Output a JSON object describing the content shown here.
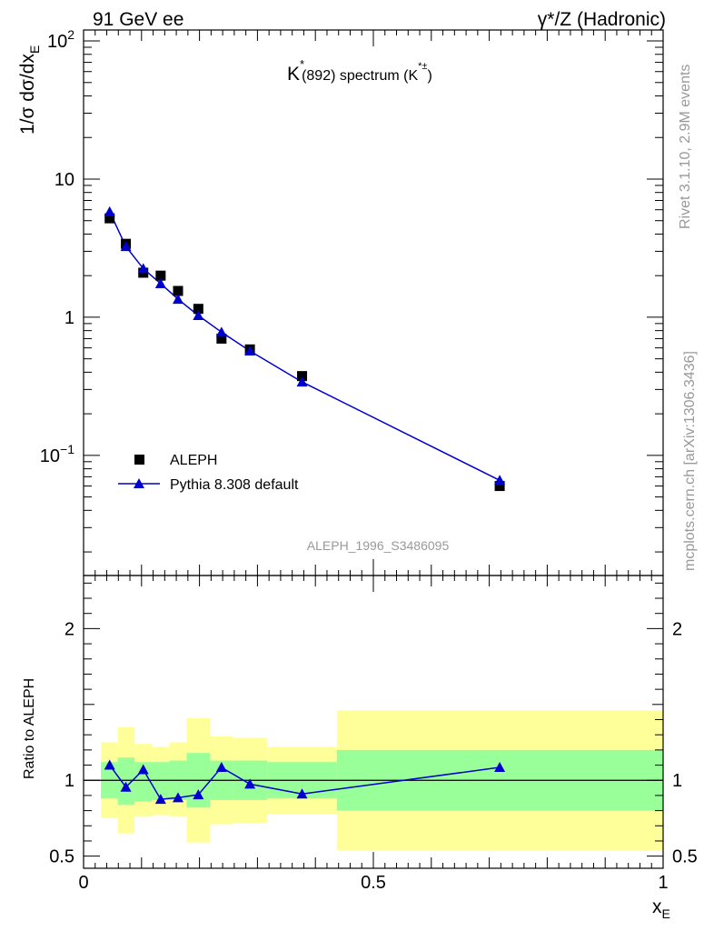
{
  "header": {
    "left": "91 GeV ee",
    "right_prefix": "γ*/Z",
    "right_suffix": "(Hadronic)"
  },
  "side_labels": {
    "rivet": "Rivet 3.1.10,  2.9M events",
    "mcplots": "mcplots.cern.ch [arXiv:1306.3436]"
  },
  "chart_data": [
    {
      "type": "scatter",
      "title": "K*(892) spectrum (K*±)",
      "title_main": "K",
      "title_star": "*",
      "title_rest": "(892) spectrum (K",
      "title_sup": "*±",
      "title_close": ")",
      "ylabel": "1/σ dσ/dx_E",
      "ylabel_main": "1/σ dσ/dx",
      "ylabel_sub": "E",
      "yscale": "log",
      "ylim": [
        0.0135,
        120
      ],
      "xlim": [
        0,
        1
      ],
      "y_ticks": [
        {
          "value": 100,
          "base": "10",
          "exp": "2"
        },
        {
          "value": 10,
          "text": "10"
        },
        {
          "value": 1,
          "text": "1"
        },
        {
          "value": 0.1,
          "base": "10",
          "exp": "−1"
        }
      ],
      "watermark": "ALEPH_1996_S3486095",
      "legend_position": "bottom-left",
      "series": [
        {
          "name": "ALEPH",
          "marker": "square",
          "color": "#000000",
          "x": [
            0.045,
            0.073,
            0.103,
            0.133,
            0.163,
            0.198,
            0.238,
            0.287,
            0.377,
            0.718
          ],
          "y": [
            5.2,
            3.4,
            2.1,
            2.0,
            1.55,
            1.15,
            0.7,
            0.585,
            0.375,
            0.06
          ]
        },
        {
          "name": "Pythia 8.308 default",
          "marker": "triangle",
          "line": true,
          "color": "#0000cc",
          "x": [
            0.045,
            0.073,
            0.103,
            0.133,
            0.163,
            0.198,
            0.238,
            0.287,
            0.377,
            0.718
          ],
          "y": [
            5.8,
            3.25,
            2.25,
            1.75,
            1.35,
            1.03,
            0.78,
            0.57,
            0.34,
            0.066
          ]
        }
      ]
    },
    {
      "type": "line",
      "ylabel": "Ratio to ALEPH",
      "xlabel": "x_E",
      "xlabel_main": "x",
      "xlabel_sub": "E",
      "ylim": [
        0.42,
        2.35
      ],
      "xlim": [
        0,
        1
      ],
      "x_ticks": [
        "0",
        "0.5",
        "1"
      ],
      "y_ticks": [
        "0.5",
        "1",
        "2"
      ],
      "reference_line": 1,
      "band_colors": {
        "inner": "#99ff99",
        "outer": "#ffff99"
      },
      "bands": [
        {
          "x_lo": 0.03,
          "x_hi": 0.059,
          "inner": [
            0.88,
            1.12
          ],
          "outer": [
            0.75,
            1.25
          ]
        },
        {
          "x_lo": 0.059,
          "x_hi": 0.088,
          "inner": [
            0.84,
            1.15
          ],
          "outer": [
            0.65,
            1.35
          ]
        },
        {
          "x_lo": 0.088,
          "x_hi": 0.118,
          "inner": [
            0.86,
            1.12
          ],
          "outer": [
            0.76,
            1.24
          ]
        },
        {
          "x_lo": 0.118,
          "x_hi": 0.148,
          "inner": [
            0.87,
            1.12
          ],
          "outer": [
            0.77,
            1.22
          ]
        },
        {
          "x_lo": 0.148,
          "x_hi": 0.178,
          "inner": [
            0.87,
            1.13
          ],
          "outer": [
            0.76,
            1.25
          ]
        },
        {
          "x_lo": 0.178,
          "x_hi": 0.218,
          "inner": [
            0.82,
            1.18
          ],
          "outer": [
            0.59,
            1.41
          ]
        },
        {
          "x_lo": 0.218,
          "x_hi": 0.258,
          "inner": [
            0.87,
            1.13
          ],
          "outer": [
            0.71,
            1.29
          ]
        },
        {
          "x_lo": 0.258,
          "x_hi": 0.317,
          "inner": [
            0.87,
            1.13
          ],
          "outer": [
            0.72,
            1.28
          ]
        },
        {
          "x_lo": 0.317,
          "x_hi": 0.437,
          "inner": [
            0.88,
            1.12
          ],
          "outer": [
            0.78,
            1.22
          ]
        },
        {
          "x_lo": 0.437,
          "x_hi": 1.0,
          "inner": [
            0.8,
            1.2
          ],
          "outer": [
            0.54,
            1.46
          ]
        }
      ],
      "series": [
        {
          "name": "Pythia 8.308 default",
          "marker": "triangle",
          "color": "#0000cc",
          "x": [
            0.045,
            0.073,
            0.103,
            0.133,
            0.163,
            0.198,
            0.238,
            0.287,
            0.377,
            0.718
          ],
          "y": [
            1.1,
            0.955,
            1.07,
            0.875,
            0.885,
            0.905,
            1.085,
            0.975,
            0.91,
            1.085
          ]
        }
      ]
    }
  ]
}
